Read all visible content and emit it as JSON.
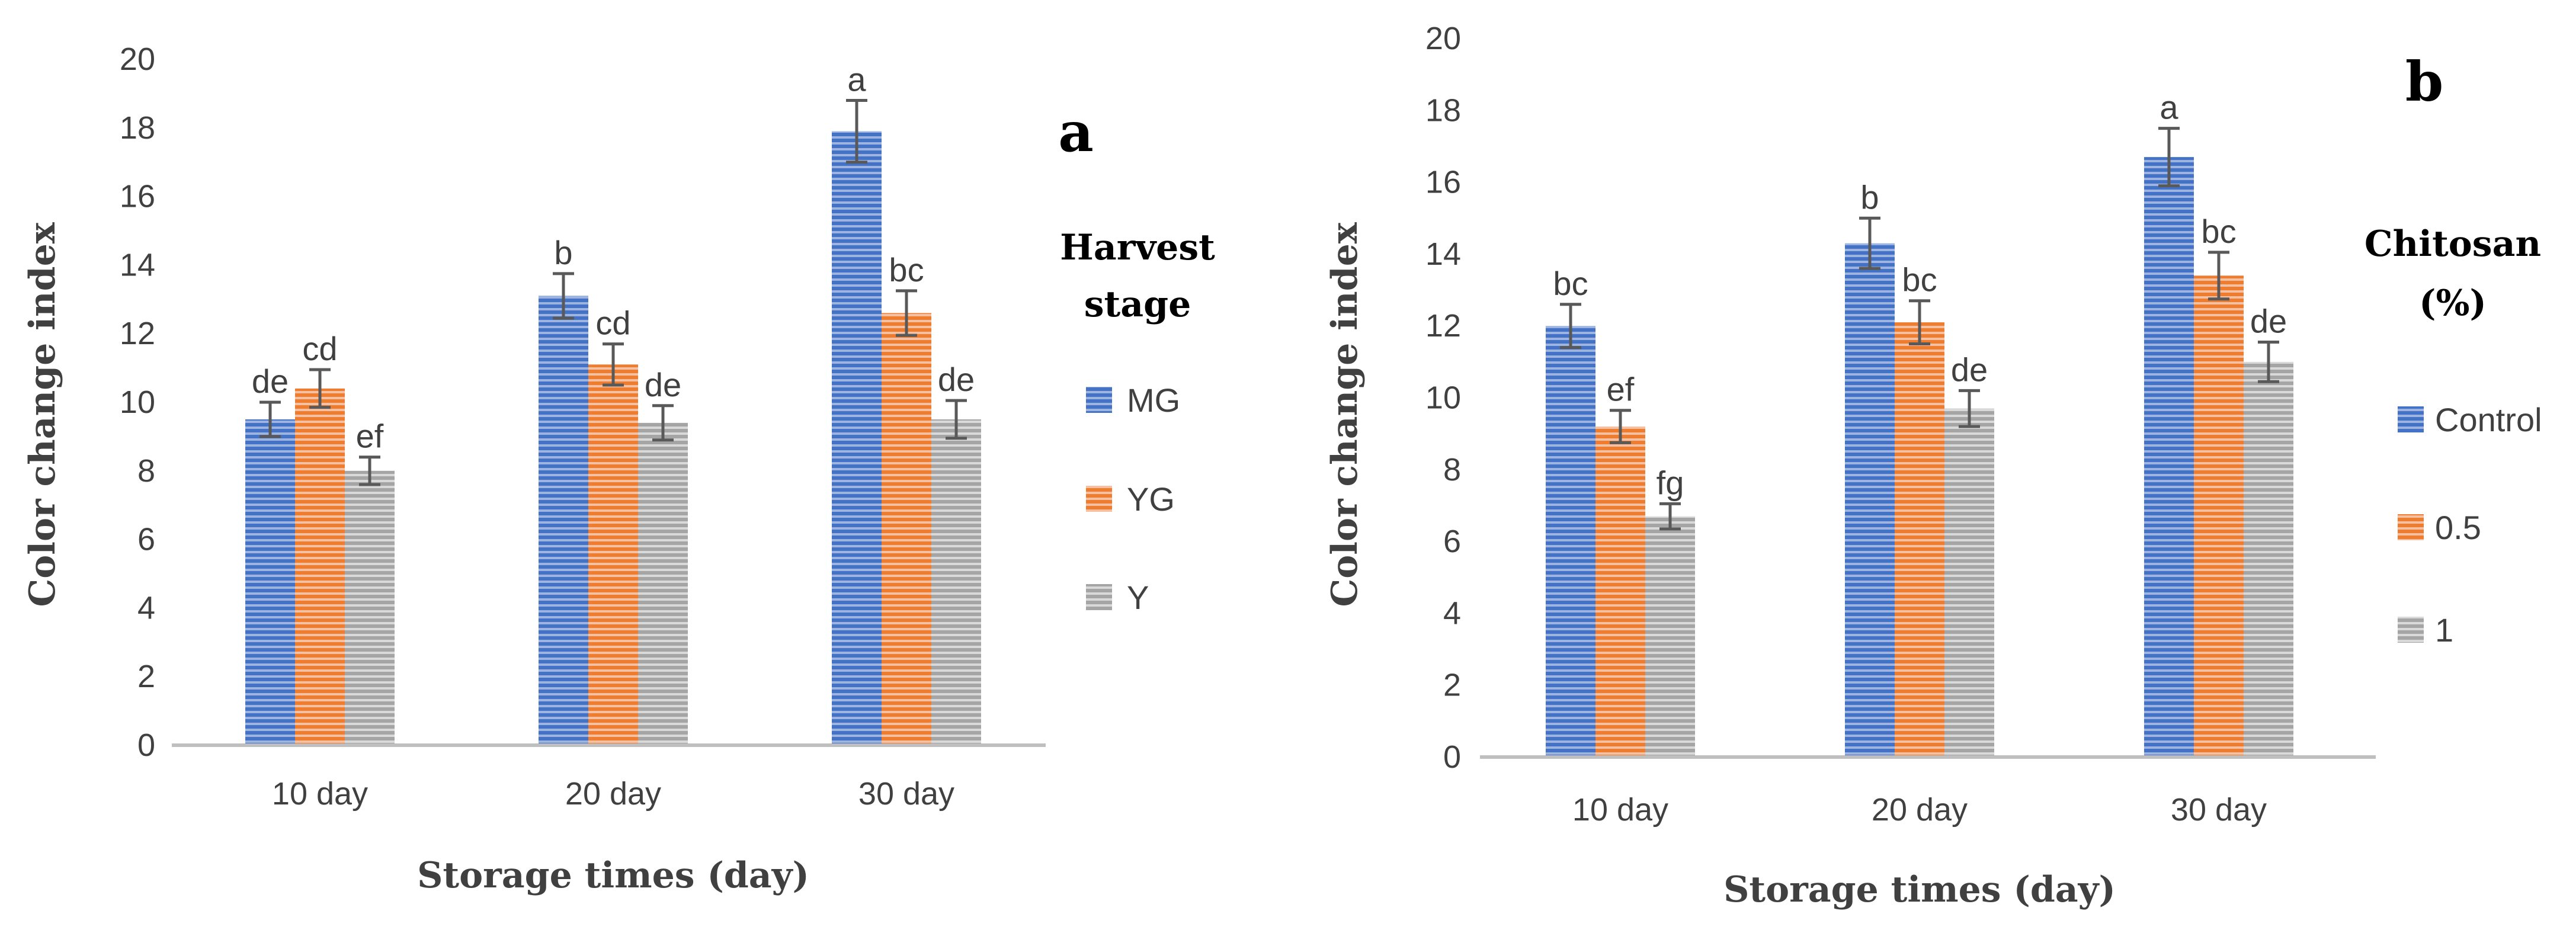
{
  "colors": {
    "blue": "#4472C4",
    "blue_stripe": "#9DB4E2",
    "orange": "#ED7D31",
    "orange_stripe": "#F7C0A0",
    "gray": "#A5A5A5",
    "gray_stripe": "#D9D9D9",
    "axis": "#BFBFBF",
    "text": "#404040",
    "error_bar": "#595959"
  },
  "chart_data": [
    {
      "type": "bar",
      "panel_label": "a",
      "categories": [
        "10 day",
        "20 day",
        "30 day"
      ],
      "xlabel": "Storage times (day)",
      "ylabel": "Color change index",
      "ylim": [
        0,
        20
      ],
      "yticks": [
        "0",
        "2",
        "4",
        "6",
        "8",
        "10",
        "12",
        "14",
        "16",
        "18",
        "20"
      ],
      "legend_title": [
        "Harvest",
        "stage"
      ],
      "series": [
        {
          "name": "MG",
          "color": "blue",
          "values": [
            9.5,
            13.1,
            17.9
          ],
          "errors": [
            0.5,
            0.65,
            0.9
          ],
          "letters": [
            "de",
            "b",
            "a"
          ]
        },
        {
          "name": "YG",
          "color": "orange",
          "values": [
            10.4,
            11.1,
            12.6
          ],
          "errors": [
            0.55,
            0.6,
            0.65
          ],
          "letters": [
            "cd",
            "cd",
            "bc"
          ]
        },
        {
          "name": "Y",
          "color": "gray",
          "values": [
            8.0,
            9.4,
            9.5
          ],
          "errors": [
            0.4,
            0.5,
            0.55
          ],
          "letters": [
            "ef",
            "de",
            "de"
          ]
        }
      ]
    },
    {
      "type": "bar",
      "panel_label": "b",
      "categories": [
        "10 day",
        "20 day",
        "30 day"
      ],
      "xlabel": "Storage times (day)",
      "ylabel": "Color change index",
      "ylim": [
        0,
        20
      ],
      "yticks": [
        "0",
        "2",
        "4",
        "6",
        "8",
        "10",
        "12",
        "14",
        "16",
        "18",
        "20"
      ],
      "legend_title": [
        "Chitosan",
        "(%)"
      ],
      "series": [
        {
          "name": "Control",
          "color": "blue",
          "values": [
            12.0,
            14.3,
            16.7
          ],
          "errors": [
            0.6,
            0.7,
            0.8
          ],
          "letters": [
            "bc",
            "b",
            "a"
          ]
        },
        {
          "name": "0.5",
          "color": "orange",
          "values": [
            9.2,
            12.1,
            13.4
          ],
          "errors": [
            0.45,
            0.6,
            0.65
          ],
          "letters": [
            "ef",
            "bc",
            "bc"
          ]
        },
        {
          "name": "1",
          "color": "gray",
          "values": [
            6.7,
            9.7,
            11.0
          ],
          "errors": [
            0.35,
            0.5,
            0.55
          ],
          "letters": [
            "fg",
            "de",
            "de"
          ]
        }
      ]
    }
  ]
}
